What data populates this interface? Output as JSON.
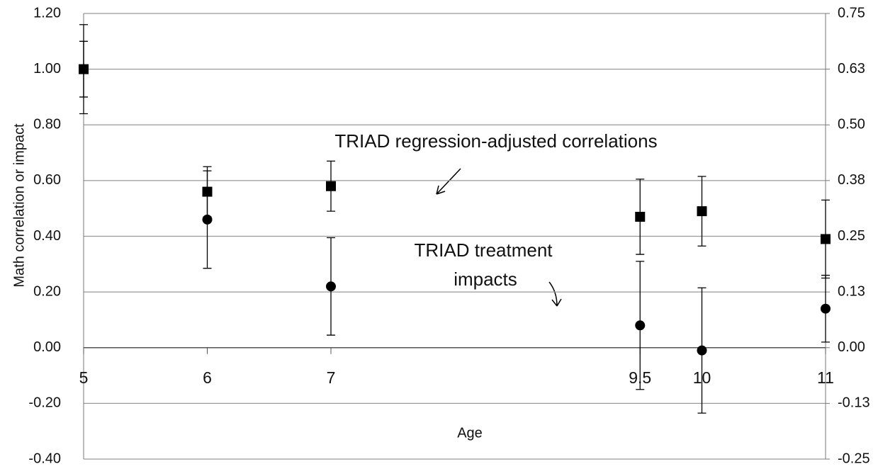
{
  "chart_data": {
    "type": "line",
    "xlabel": "Age",
    "ylabel": "Math correlation or impact",
    "xlim": [
      5,
      11
    ],
    "xticks": [
      5,
      6,
      7,
      9.5,
      10,
      11
    ],
    "ylim": [
      -0.4,
      1.2
    ],
    "yticks": [
      {
        "value": -0.4,
        "label": "-0.40"
      },
      {
        "value": -0.2,
        "label": "-0.20"
      },
      {
        "value": 0,
        "label": "0.00"
      },
      {
        "value": 0.2,
        "label": "0.20"
      },
      {
        "value": 0.4,
        "label": "0.40"
      },
      {
        "value": 0.6,
        "label": "0.60"
      },
      {
        "value": 0.8,
        "label": "0.80"
      },
      {
        "value": 1.0,
        "label": "1.00"
      },
      {
        "value": 1.2,
        "label": "1.20"
      }
    ],
    "y2lim": [
      -0.25,
      0.75
    ],
    "y2ticks": [
      {
        "value": -0.25,
        "label": "-0.25"
      },
      {
        "value": -0.125,
        "label": "-0.13"
      },
      {
        "value": 0,
        "label": "0.00"
      },
      {
        "value": 0.125,
        "label": "0.13"
      },
      {
        "value": 0.25,
        "label": "0.25"
      },
      {
        "value": 0.375,
        "label": "0.38"
      },
      {
        "value": 0.5,
        "label": "0.50"
      },
      {
        "value": 0.625,
        "label": "0.63"
      },
      {
        "value": 0.75,
        "label": "0.75"
      }
    ],
    "grid": true,
    "x": [
      5,
      6,
      7,
      9.5,
      10,
      11
    ],
    "series": [
      {
        "color": "#000000",
        "dashed": true,
        "marker": "square",
        "values": [
          1.0,
          0.56,
          0.58,
          0.47,
          0.49,
          0.39
        ],
        "errors": [
          0.1,
          0.09,
          0.09,
          0.135,
          0.125,
          0.14
        ]
      },
      {
        "color": "#000000",
        "dashed": false,
        "marker": "circle",
        "values": [
          1.0,
          0.46,
          0.22,
          0.08,
          -0.01,
          0.14
        ],
        "errors": [
          0.16,
          0.175,
          0.175,
          0.23,
          0.225,
          0.12
        ]
      }
    ],
    "annotations": [
      {
        "lines": [
          "TRIAD regression-adjusted correlations"
        ]
      },
      {
        "lines": [
          "TRIAD treatment",
          "impacts"
        ]
      }
    ]
  }
}
